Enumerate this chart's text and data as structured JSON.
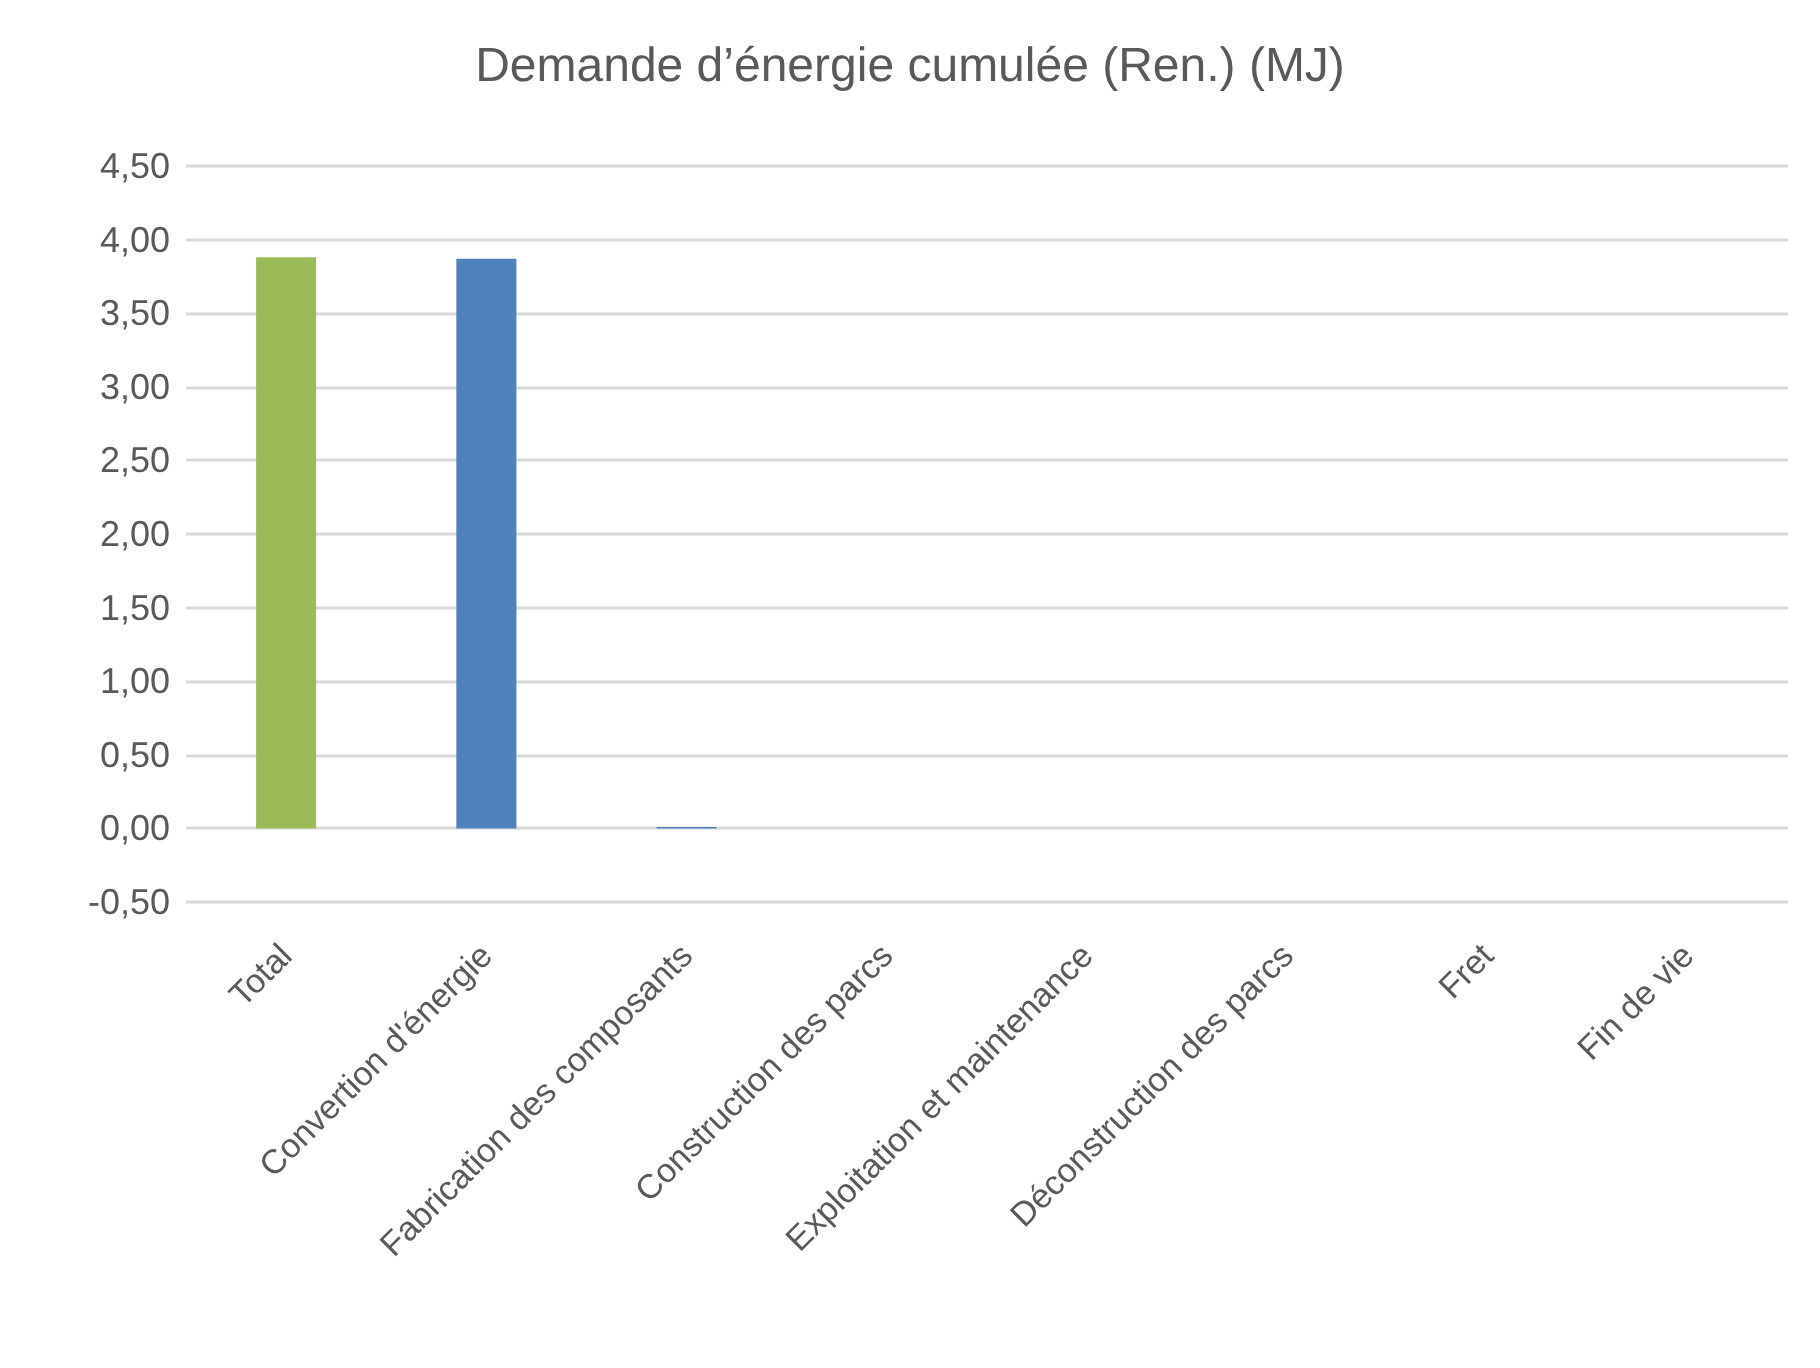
{
  "chart_data": {
    "type": "bar",
    "title": "Demande d’énergie cumulée (Ren.) (MJ)",
    "categories": [
      "Total",
      "Convertion d'énergie",
      "Fabrication des composants",
      "Construction des parcs",
      "Exploitation et maintenance",
      "Déconstruction des parcs",
      "Fret",
      "Fin de vie"
    ],
    "values": [
      3.88,
      3.87,
      0.01,
      0,
      0,
      0,
      0,
      0
    ],
    "colors": [
      "#9bbb59",
      "#4f81bd",
      "#4f81bd",
      "#4f81bd",
      "#4f81bd",
      "#4f81bd",
      "#4f81bd",
      "#4f81bd"
    ],
    "ylim": [
      -0.5,
      4.5
    ],
    "yticks": [
      {
        "value": -0.5,
        "label": "-0,50"
      },
      {
        "value": 0,
        "label": "0,00"
      },
      {
        "value": 0.5,
        "label": "0,50"
      },
      {
        "value": 1,
        "label": "1,00"
      },
      {
        "value": 1.5,
        "label": "1,50"
      },
      {
        "value": 2,
        "label": "2,00"
      },
      {
        "value": 2.5,
        "label": "2,50"
      },
      {
        "value": 3,
        "label": "3,00"
      },
      {
        "value": 3.5,
        "label": "3,50"
      },
      {
        "value": 4,
        "label": "4,00"
      },
      {
        "value": 4.5,
        "label": "4,50"
      }
    ],
    "grid": "y"
  }
}
